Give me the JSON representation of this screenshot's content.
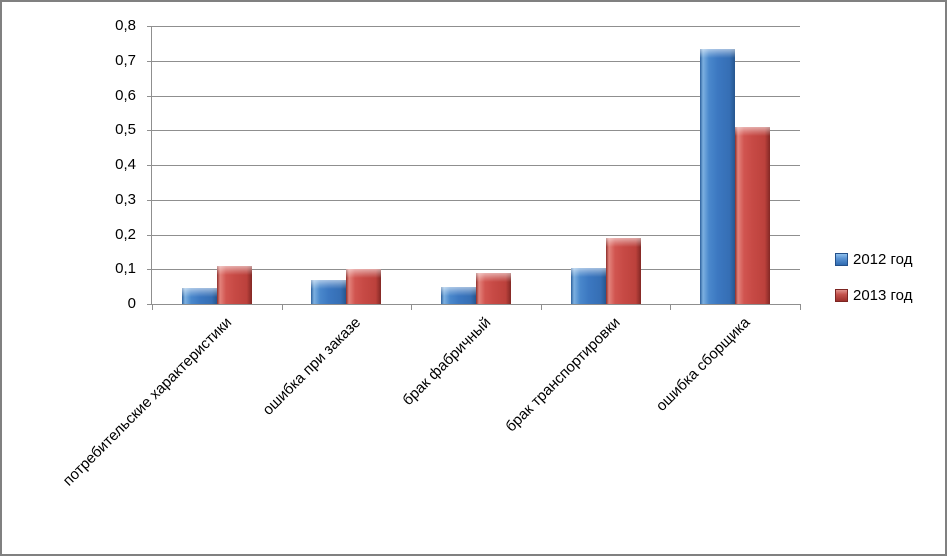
{
  "chart_data": {
    "type": "bar",
    "title": "",
    "xlabel": "",
    "ylabel": "",
    "categories": [
      "потребительские характеристики",
      "ошибка при заказе",
      "брак фабричный",
      "брак транспортировки",
      "ошибка сборщика"
    ],
    "series": [
      {
        "name": "2012 год",
        "color": "#3c78c1",
        "values": [
          0.045,
          0.07,
          0.05,
          0.105,
          0.735
        ]
      },
      {
        "name": "2013 год",
        "color": "#c7453f",
        "values": [
          0.11,
          0.1,
          0.09,
          0.19,
          0.51
        ]
      }
    ],
    "ylim": [
      0,
      0.8
    ],
    "y_tick_step": 0.1,
    "y_tick_labels": [
      "0,8",
      "0,7",
      "0,6",
      "0,5",
      "0,4",
      "0,3",
      "0,2",
      "0,1",
      "0"
    ],
    "grid": true,
    "legend_position": "right",
    "decimal_separator": ","
  },
  "colors": {
    "grid": "#8f8f8f",
    "axis": "#8f8f8f",
    "text": "#000000",
    "frame_border": "#808080",
    "series_2012": "#3c78c1",
    "series_2013": "#c7453f"
  }
}
